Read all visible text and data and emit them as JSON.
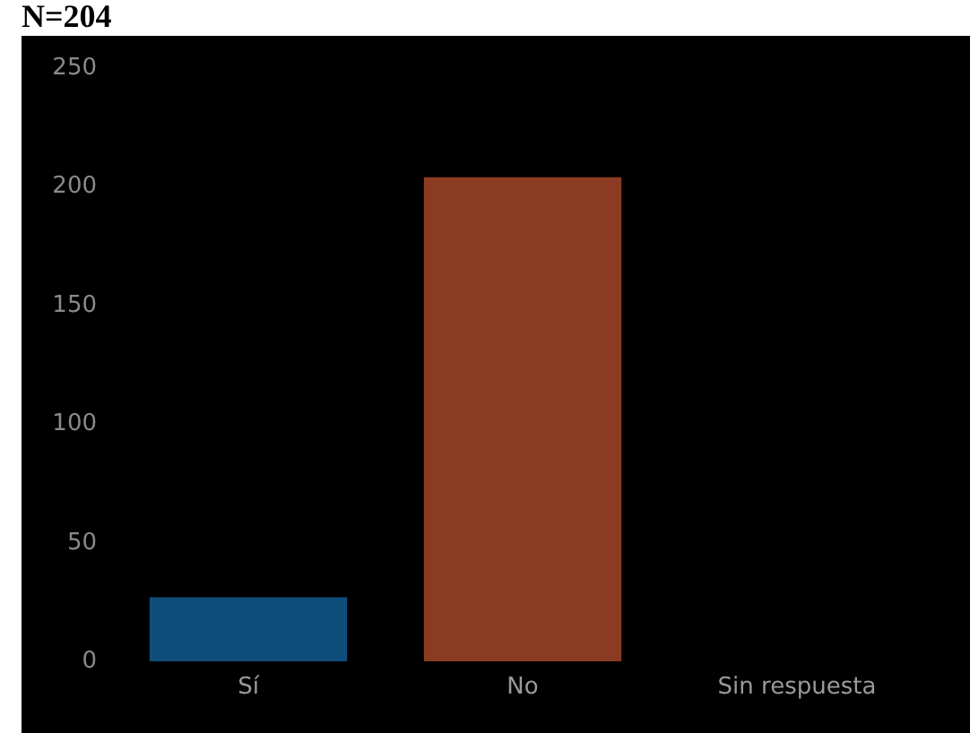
{
  "chart_data": {
    "type": "bar",
    "title": "N=204",
    "categories": [
      "Sí",
      "No",
      "Sin respuesta"
    ],
    "values": [
      27,
      204,
      0
    ],
    "colors": [
      "#0f4e7a",
      "#8b3b22",
      "#8b3b22"
    ],
    "ylim": [
      0,
      250
    ],
    "yticks": [
      0,
      50,
      100,
      150,
      200,
      250
    ],
    "grid": false
  }
}
